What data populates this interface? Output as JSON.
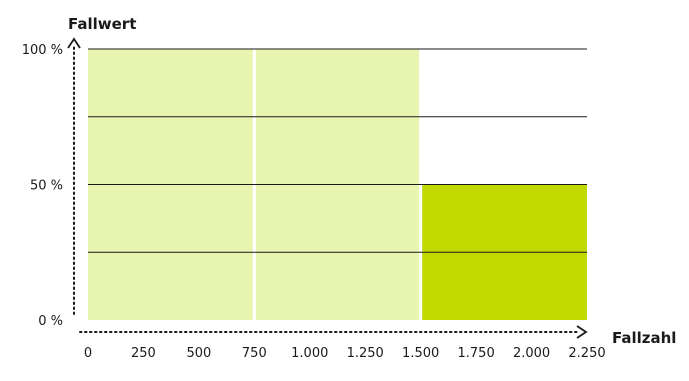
{
  "chart_data": {
    "type": "bar",
    "ylabel": "Fallwert",
    "xlabel": "Fallzahl",
    "xlim": [
      0,
      2250
    ],
    "ylim": [
      0,
      100
    ],
    "x_ticks": [
      "0",
      "250",
      "500",
      "750",
      "1.000",
      "1.250",
      "1.500",
      "1.750",
      "2.000",
      "2.250"
    ],
    "y_ticks": [
      {
        "value": 0,
        "label": "0 %"
      },
      {
        "value": 50,
        "label": "50 %"
      },
      {
        "value": 100,
        "label": "100 %"
      }
    ],
    "gridlines_y": [
      25,
      50,
      75,
      100
    ],
    "bars": [
      {
        "x_start": 0,
        "x_end": 750,
        "value": 100,
        "color": "#e8f5b0"
      },
      {
        "x_start": 750,
        "x_end": 1500,
        "value": 100,
        "color": "#e8f5b0"
      },
      {
        "x_start": 1500,
        "x_end": 2250,
        "value": 50,
        "color": "#c2d900"
      }
    ],
    "grid": true,
    "axes_style": "dotted with arrowheads"
  }
}
